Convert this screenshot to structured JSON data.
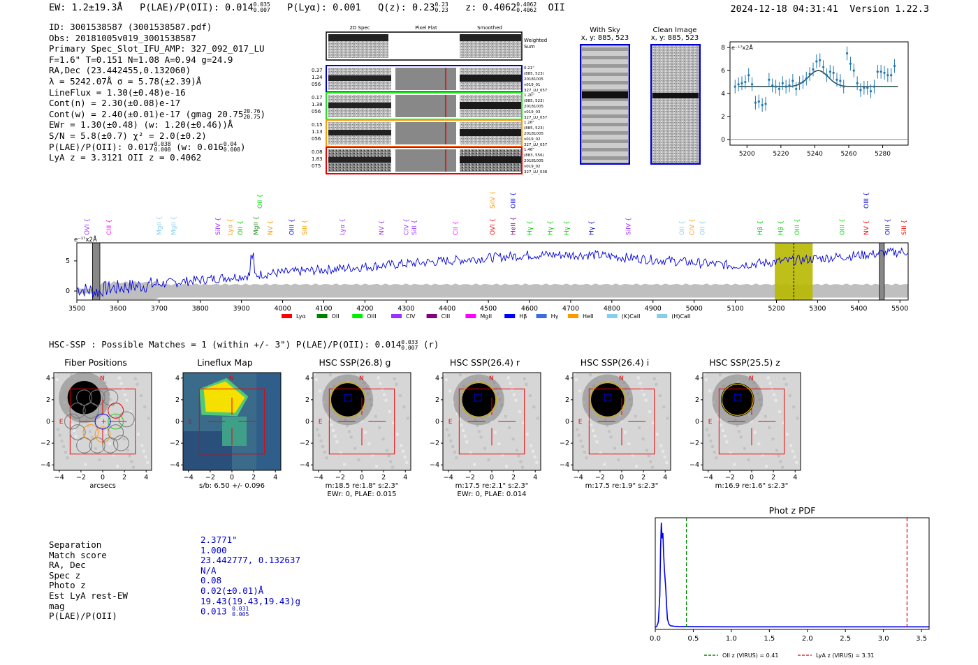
{
  "header": {
    "ew": "EW: 1.2±19.3Å",
    "plae_label": "P(LAE)/P(OII): 0.014",
    "plae_hi": "0.035",
    "plae_lo": "0.007",
    "plya": "P(Lyα): 0.001",
    "qz_label": "Q(z): 0.23",
    "qz_hi": "0.23",
    "qz_lo": "0.23",
    "z_label": "z: 0.4062",
    "z_hi": "0.4062",
    "z_lo": "0.4062",
    "line": "OII",
    "timestamp": "2024-12-18 04:31:41",
    "version": "Version 1.22.3"
  },
  "info": {
    "l1": "ID: 3001538587 (3001538587.pdf)",
    "l2": "Obs: 20181005v019_3001538587",
    "l3": "Primary Spec_Slot_IFU_AMP: 327_092_017_LU",
    "l4": "F=1.6\"  T=0.151  N=1.08  A=0.94  g=24.9",
    "l5": "RA,Dec (23.442455,0.132060)",
    "l6": "λ = 5242.07Å  σ = 5.78(±2.39)Å",
    "l7": "LineFlux = 1.30(±0.48)e-16",
    "l8": "Cont(n) = 2.30(±0.08)e-17",
    "l9": "Cont(w) = 2.40(±0.01)e-17 (gmag 20.75",
    "l9_hi": "20.76",
    "l9_lo": "20.75",
    "l9_end": ")",
    "l10": "EWr = 1.30(±0.48) (w: 1.20(±0.46))Å",
    "l11": "S/N = 5.8(±0.7)  χ² = 2.0(±0.2)",
    "l12": "P(LAE)/P(OII): 0.017",
    "l12_hi": "0.038",
    "l12_lo": "0.008",
    "l12_mid": "(w: 0.016",
    "l12_hi2": "0.04",
    "l12_lo2": "0.008",
    "l12_end": ")",
    "l13": "LyA z = 3.3121  OII z = 0.4062"
  },
  "cutouts": {
    "col_2d": "2D Spec",
    "col_flat": "Pixel Flat",
    "col_smooth": "Smoothed",
    "weighted": "Weighted Sum",
    "rows": [
      {
        "left": [
          "0.37",
          "1.24",
          "056"
        ],
        "right": [
          "0.21\"",
          "(885, 523)",
          "20181005",
          "v019_01",
          "327_LU_057"
        ],
        "color": "#0000cc"
      },
      {
        "left": [
          "0.17",
          "1.38",
          "056"
        ],
        "right": [
          "1.20\"",
          "(885, 523)",
          "20181005",
          "v019_03",
          "327_LU_057"
        ],
        "color": "#22dd22"
      },
      {
        "left": [
          "0.15",
          "1.13",
          "056"
        ],
        "right": [
          "1.26\"",
          "(885, 523)",
          "20181005",
          "v019_02",
          "327_LU_057"
        ],
        "color": "#ff9900"
      },
      {
        "left": [
          "0.08",
          "1.83",
          "075"
        ],
        "right": [
          "1.46\"",
          "(883, 556)",
          "20181005",
          "v019_02",
          "327_LU_038"
        ],
        "color": "#ee0000"
      }
    ],
    "with_sky": "With Sky",
    "with_sky_xy": "x, y: 885, 523",
    "clean": "Clean Image",
    "clean_xy": "x, y: 885, 523"
  },
  "fit_chart": {
    "type": "scatter",
    "ylabel": "e⁻¹⁷x2Å",
    "xlim": [
      5190,
      5295
    ],
    "ylim": [
      -0.5,
      8.5
    ],
    "xticks": [
      5200,
      5220,
      5240,
      5260,
      5280
    ],
    "yticks": [
      0,
      2,
      4,
      6,
      8
    ],
    "x": [
      5193,
      5195,
      5197,
      5199,
      5201,
      5203,
      5205,
      5207,
      5209,
      5211,
      5213,
      5215,
      5217,
      5219,
      5221,
      5223,
      5225,
      5227,
      5229,
      5231,
      5233,
      5235,
      5237,
      5239,
      5241,
      5243,
      5245,
      5247,
      5249,
      5251,
      5253,
      5255,
      5257,
      5259,
      5261,
      5263,
      5265,
      5267,
      5269,
      5271,
      5273,
      5275,
      5277,
      5279,
      5281,
      5283,
      5285,
      5287
    ],
    "y": [
      4.6,
      4.8,
      4.9,
      5.0,
      5.6,
      4.8,
      3.2,
      3.3,
      3.0,
      3.1,
      5.2,
      4.7,
      4.6,
      4.4,
      4.9,
      4.6,
      4.7,
      5.1,
      4.4,
      4.9,
      5.0,
      5.3,
      5.7,
      6.1,
      6.8,
      6.9,
      6.3,
      5.6,
      5.9,
      5.8,
      5.2,
      5.1,
      4.6,
      7.5,
      6.6,
      6.0,
      4.9,
      4.3,
      4.5,
      4.5,
      4.2,
      4.6,
      5.9,
      5.9,
      5.8,
      5.6,
      5.6,
      6.4
    ],
    "model_continuum": 4.6,
    "model_center": 5242.07,
    "model_sigma": 5.78,
    "model_amp": 1.4
  },
  "spectrum": {
    "ylabel": "e⁻¹⁷x2Å",
    "xlim": [
      3500,
      5520
    ],
    "ylim": [
      -1.5,
      8
    ],
    "xticks": [
      3500,
      3600,
      3700,
      3800,
      3900,
      4000,
      4100,
      4200,
      4300,
      4400,
      4500,
      4600,
      4700,
      4800,
      4900,
      5000,
      5100,
      5200,
      5300,
      5400,
      5500
    ],
    "yticks": [
      0,
      5
    ],
    "highlight_range": [
      5196,
      5288
    ],
    "line_marker": 5242.07,
    "mask_ranges": [
      [
        3538,
        3556
      ],
      [
        5450,
        5462
      ]
    ],
    "line_labels": [
      {
        "t": "OVI",
        "x": 3525,
        "c": "#9b30ff",
        "row": 1
      },
      {
        "t": "CIII",
        "x": 3578,
        "c": "#ff00ff",
        "row": 1
      },
      {
        "t": "MgII",
        "x": 3700,
        "c": "#87ceeb",
        "row": 1
      },
      {
        "t": "MgII",
        "x": 3735,
        "c": "#87ceeb",
        "row": 1
      },
      {
        "t": "SiIV",
        "x": 3843,
        "c": "#9b30ff",
        "row": 1
      },
      {
        "t": "Lyα",
        "x": 3873,
        "c": "#ff9900",
        "row": 1
      },
      {
        "t": "OII",
        "x": 3897,
        "c": "#00cc00",
        "row": 1
      },
      {
        "t": "MgII",
        "x": 3935,
        "c": "#228b22",
        "row": 1
      },
      {
        "t": "OII",
        "x": 3945,
        "c": "#00dd00",
        "row": 0
      },
      {
        "t": "NV",
        "x": 3970,
        "c": "#ff9900",
        "row": 1
      },
      {
        "t": "OIII",
        "x": 4022,
        "c": "#0000ff",
        "row": 1
      },
      {
        "t": "SiII",
        "x": 4053,
        "c": "#ff9900",
        "row": 1
      },
      {
        "t": "Lyα",
        "x": 4145,
        "c": "#9b30ff",
        "row": 1
      },
      {
        "t": "NV",
        "x": 4240,
        "c": "#9b30ff",
        "row": 1
      },
      {
        "t": "CIV",
        "x": 4300,
        "c": "#9b30ff",
        "row": 1
      },
      {
        "t": "SiII",
        "x": 4320,
        "c": "#9b30ff",
        "row": 1
      },
      {
        "t": "CII",
        "x": 4420,
        "c": "#ff00ff",
        "row": 1
      },
      {
        "t": "SiIV",
        "x": 4510,
        "c": "#ff9900",
        "row": 0
      },
      {
        "t": "OVI",
        "x": 4510,
        "c": "#ff0000",
        "row": 1
      },
      {
        "t": "OIII",
        "x": 4560,
        "c": "#0000ff",
        "row": 0
      },
      {
        "t": "HeII",
        "x": 4560,
        "c": "#800080",
        "row": 1
      },
      {
        "t": "Hγ",
        "x": 4600,
        "c": "#00cc00",
        "row": 1
      },
      {
        "t": "Hγ",
        "x": 4650,
        "c": "#00cc00",
        "row": 1
      },
      {
        "t": "Hγ",
        "x": 4690,
        "c": "#00cc00",
        "row": 1
      },
      {
        "t": "Hγ",
        "x": 4750,
        "c": "#0000cc",
        "row": 1
      },
      {
        "t": "SiIV",
        "x": 4840,
        "c": "#9b30ff",
        "row": 1
      },
      {
        "t": "OII",
        "x": 4970,
        "c": "#87ceeb",
        "row": 1
      },
      {
        "t": "CIV",
        "x": 4995,
        "c": "#ff9900",
        "row": 1
      },
      {
        "t": "OII",
        "x": 5020,
        "c": "#87ceeb",
        "row": 1
      },
      {
        "t": "Hβ",
        "x": 5160,
        "c": "#00cc00",
        "row": 1
      },
      {
        "t": "Hβ",
        "x": 5210,
        "c": "#00cc00",
        "row": 1
      },
      {
        "t": "OIII",
        "x": 5250,
        "c": "#00dd00",
        "row": 1
      },
      {
        "t": "OIII",
        "x": 5360,
        "c": "#00dd00",
        "row": 1
      },
      {
        "t": "OIII",
        "x": 5418,
        "c": "#0000cc",
        "row": 0
      },
      {
        "t": "NV",
        "x": 5418,
        "c": "#ff0000",
        "row": 1
      },
      {
        "t": "OIII",
        "x": 5470,
        "c": "#0000cc",
        "row": 1
      },
      {
        "t": "SiII",
        "x": 5510,
        "c": "#ff0000",
        "row": 1
      }
    ],
    "legend": [
      {
        "t": "Lyα",
        "c": "#ff0000"
      },
      {
        "t": "OII",
        "c": "#008000"
      },
      {
        "t": "OIII",
        "c": "#00ee00"
      },
      {
        "t": "CIV",
        "c": "#9b30ff"
      },
      {
        "t": "CIII",
        "c": "#800080"
      },
      {
        "t": "MgII",
        "c": "#ff00ff"
      },
      {
        "t": "Hβ",
        "c": "#0000ff"
      },
      {
        "t": "Hγ",
        "c": "#4169e1"
      },
      {
        "t": "HeII",
        "c": "#ff9900"
      },
      {
        "t": "(K)CaII",
        "c": "#87ceeb"
      },
      {
        "t": "(H)CaII",
        "c": "#87ceeb"
      }
    ]
  },
  "hsc": {
    "summary": "HSC-SSP : Possible Matches = 1 (within +/- 3\")  P(LAE)/P(OII): 0.014",
    "summary_hi": "0.033",
    "summary_lo": "0.007",
    "summary_end": "(r)",
    "panels": [
      {
        "title": "Fiber Positions",
        "xlabel": "arcsecs",
        "xlabel2": ""
      },
      {
        "title": "Lineflux Map",
        "xlabel": "s/b: 6.50 +/- 0.096",
        "xlabel2": ""
      },
      {
        "title": "HSC SSP(26.8) g",
        "xlabel": "m:18.5  re:1.8\"  s:2.3\"",
        "xlabel2": "EWr: 0, PLAE: 0.015"
      },
      {
        "title": "HSC SSP(26.4) r",
        "xlabel": "m:17.5  re:2.1\"  s:2.3\"",
        "xlabel2": "EWr: 0, PLAE: 0.014"
      },
      {
        "title": "HSC SSP(26.4) i",
        "xlabel": "m:17.5  re:1.9\"  s:2.3\"",
        "xlabel2": ""
      },
      {
        "title": "HSC SSP(25.5) z",
        "xlabel": "m:16.9  re:1.6\"  s:2.3\"",
        "xlabel2": ""
      }
    ],
    "axis_ticks": [
      "−4",
      "−2",
      "0",
      "2",
      "4"
    ],
    "compass_n": "N",
    "compass_e": "E"
  },
  "match": {
    "labels": [
      "Separation",
      "Match score",
      "RA, Dec",
      "Spec z",
      "Photo z",
      "Est LyA rest-EW",
      "mag",
      "P(LAE)/P(OII)"
    ],
    "values": [
      "2.3771\"",
      "1.000",
      "23.442777, 0.132637",
      "N/A",
      "0.08",
      "0.02(±0.01)Å",
      "19.43(19.43,19.43)g",
      "0.013"
    ],
    "plae_hi": "0.031",
    "plae_lo": "0.005"
  },
  "photz": {
    "type": "line",
    "title": "Phot z PDF",
    "xlim": [
      0,
      3.6
    ],
    "xticks": [
      0.0,
      0.5,
      1.0,
      1.5,
      2.0,
      2.5,
      3.0,
      3.5
    ],
    "x": [
      0.0,
      0.02,
      0.04,
      0.06,
      0.07,
      0.08,
      0.09,
      0.1,
      0.11,
      0.12,
      0.13,
      0.14,
      0.15,
      0.16,
      0.18,
      0.2,
      0.25,
      0.3,
      0.5,
      1.0,
      2.0,
      3.0,
      3.6
    ],
    "y": [
      0.0,
      0.01,
      0.05,
      0.3,
      0.75,
      1.0,
      0.85,
      0.9,
      0.7,
      0.55,
      0.45,
      0.35,
      0.2,
      0.08,
      0.03,
      0.015,
      0.01,
      0.008,
      0.006,
      0.005,
      0.005,
      0.005,
      0.005
    ],
    "oii_z": 0.41,
    "lya_z": 3.31,
    "legend_oii": "OII z (VIRUS) = 0.41",
    "legend_lya": "LyA z (VIRUS) = 3.31"
  }
}
